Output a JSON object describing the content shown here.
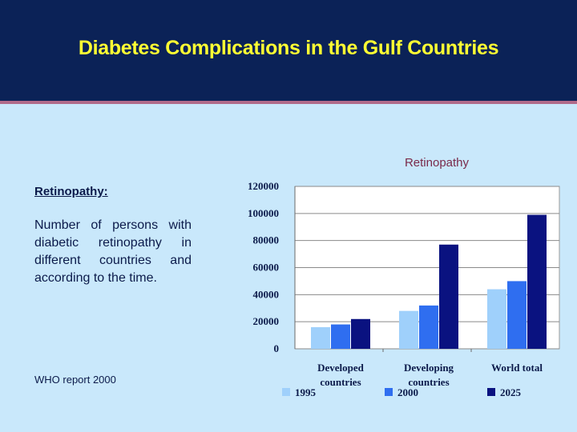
{
  "header": {
    "title": "Diabetes Complications in the Gulf Countries"
  },
  "left": {
    "heading": "Retinopathy:",
    "description": "Number of persons with diabetic retinopathy in different countries and according to the time.",
    "source": "WHO report 2000"
  },
  "colors": {
    "header_bg": "#0b2257",
    "title": "#ffff33",
    "series": [
      "#9fd0fb",
      "#2f6ef0",
      "#0a1280"
    ]
  },
  "chart_data": {
    "type": "bar",
    "title": "Retinopathy",
    "categories": [
      [
        "Developed",
        "countries"
      ],
      [
        "Developing",
        "countries"
      ],
      [
        "World total"
      ]
    ],
    "series": [
      {
        "name": "1995",
        "values": [
          16000,
          28000,
          44000
        ]
      },
      {
        "name": "2000",
        "values": [
          18000,
          32000,
          50000
        ]
      },
      {
        "name": "2025",
        "values": [
          22000,
          77000,
          99000
        ]
      }
    ],
    "ylim": [
      0,
      120000
    ],
    "yticks": [
      0,
      20000,
      40000,
      60000,
      80000,
      100000,
      120000
    ],
    "grid": true,
    "legend": "bottom"
  }
}
